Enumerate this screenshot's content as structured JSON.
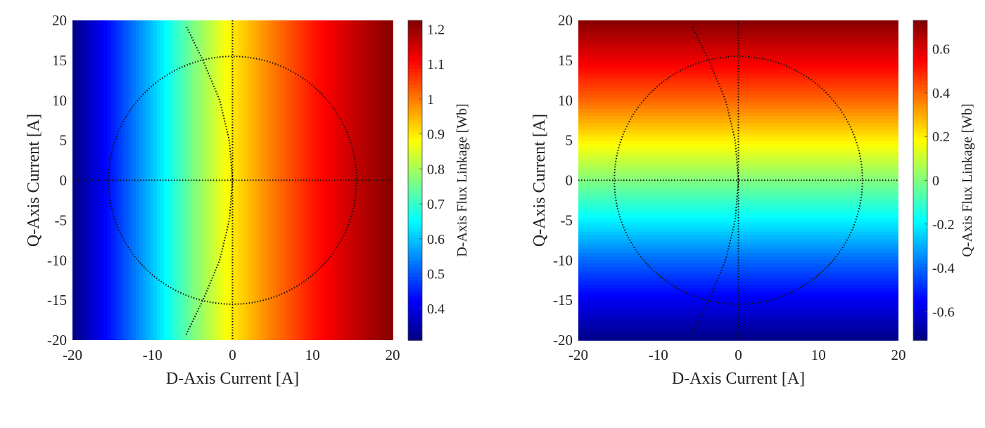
{
  "chart_data": [
    {
      "type": "heatmap",
      "title": "",
      "xlabel": "D-Axis Current [A]",
      "ylabel": "Q-Axis Current [A]",
      "xlim": [
        -20,
        20
      ],
      "ylim": [
        -20,
        20
      ],
      "xticks": [
        "-20",
        "-10",
        "0",
        "10",
        "20"
      ],
      "yticks": [
        "20",
        "15",
        "10",
        "5",
        "0",
        "-5",
        "-10",
        "-15",
        "-20"
      ],
      "colormap": "jet",
      "colorbar": {
        "label": "D-Axis Flux Linkage [Wb]",
        "clim": [
          0.31,
          1.225
        ],
        "ticks": [
          "0.4",
          "0.5",
          "0.6",
          "0.7",
          "0.8",
          "0.9",
          "1",
          "1.1",
          "1.2"
        ]
      },
      "varies_along": "x",
      "profile": {
        "coord": [
          -20,
          -15,
          -10,
          -5,
          0,
          5,
          10,
          15,
          20
        ],
        "value": [
          0.31,
          0.45,
          0.6,
          0.76,
          0.9,
          1.0,
          1.09,
          1.16,
          1.22
        ]
      },
      "overlays": {
        "circle_radius": 15.5,
        "mtpa_curve": {
          "q": [
            -19.3,
            -15,
            -10,
            -5,
            0,
            5,
            10,
            15,
            19.3
          ],
          "d": [
            -5.8,
            -3.7,
            -1.6,
            -0.4,
            0,
            -0.4,
            -1.6,
            -3.7,
            -5.8
          ]
        },
        "crosshair": [
          0,
          0
        ]
      }
    },
    {
      "type": "heatmap",
      "title": "",
      "xlabel": "D-Axis Current [A]",
      "ylabel": "Q-Axis Current [A]",
      "xlim": [
        -20,
        20
      ],
      "ylim": [
        -20,
        20
      ],
      "xticks": [
        "-20",
        "-10",
        "0",
        "10",
        "20"
      ],
      "yticks": [
        "20",
        "15",
        "10",
        "5",
        "0",
        "-5",
        "-10",
        "-15",
        "-20"
      ],
      "colormap": "jet",
      "colorbar": {
        "label": "Q-Axis Flux Linkage [Wb]",
        "clim": [
          -0.73,
          0.73
        ],
        "ticks": [
          "0.6",
          "0.4",
          "0.2",
          "0",
          "-0.2",
          "-0.4",
          "-0.6"
        ]
      },
      "varies_along": "y",
      "profile": {
        "coord": [
          -20,
          -15,
          -10,
          -5,
          0,
          5,
          10,
          15,
          20
        ],
        "value": [
          -0.72,
          -0.57,
          -0.4,
          -0.2,
          0,
          0.2,
          0.4,
          0.57,
          0.72
        ]
      },
      "overlays": {
        "circle_radius": 15.5,
        "mtpa_curve": {
          "q": [
            -19.3,
            -15,
            -10,
            -5,
            0,
            5,
            10,
            15,
            19.3
          ],
          "d": [
            -5.8,
            -3.7,
            -1.6,
            -0.4,
            0,
            -0.4,
            -1.6,
            -3.7,
            -5.8
          ]
        },
        "crosshair": [
          0,
          0
        ]
      }
    }
  ]
}
